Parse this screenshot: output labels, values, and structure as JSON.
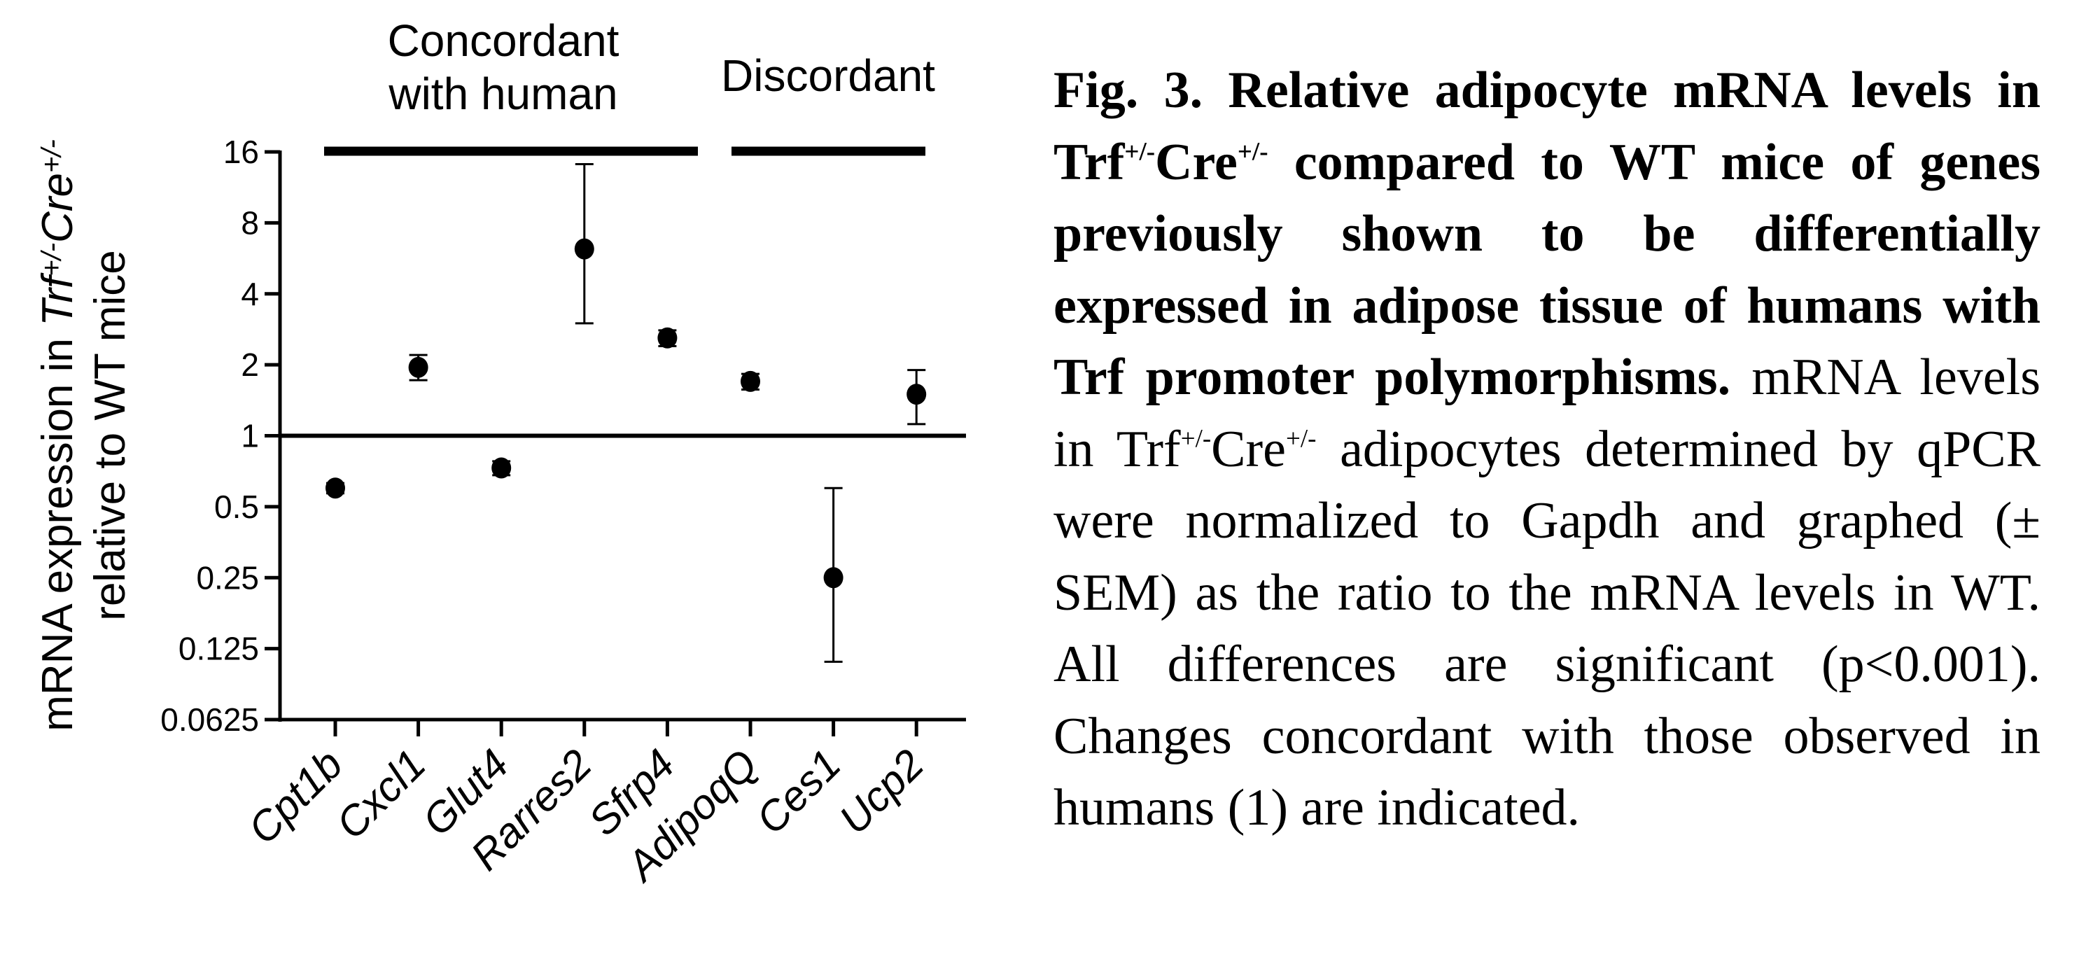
{
  "chart_data": {
    "type": "scatter",
    "y_scale": "log2",
    "ylim": [
      0.0625,
      16
    ],
    "y_ticks": [
      "16",
      "8",
      "4",
      "2",
      "1",
      "0.5",
      "0.25",
      "0.125",
      "0.0625"
    ],
    "y_tick_values": [
      16,
      8,
      4,
      2,
      1,
      0.5,
      0.25,
      0.125,
      0.0625
    ],
    "reference_line": 1,
    "ylabel": {
      "line1_prefix": "mRNA expression in ",
      "line1_gene": "Trf",
      "line1_sup1": "+/-",
      "line1_mid": "Cre",
      "line1_sup2": "+/-",
      "line2": "relative to WT mice"
    },
    "categories": [
      "Cpt1b",
      "Cxcl1",
      "Glut4",
      "Rarres2",
      "Sfrp4",
      "AdipoqQ",
      "Ces1",
      "Ucp2"
    ],
    "values": [
      0.6,
      1.95,
      0.73,
      6.2,
      2.6,
      1.7,
      0.25,
      1.5
    ],
    "error_low": [
      0.57,
      1.72,
      0.68,
      3.0,
      2.4,
      1.57,
      0.11,
      1.12
    ],
    "error_high": [
      0.63,
      2.2,
      0.78,
      14.2,
      2.8,
      1.83,
      0.6,
      1.9
    ],
    "groups": [
      {
        "label_lines": [
          "Concordant",
          "with human"
        ],
        "from": 0,
        "to": 4
      },
      {
        "label_lines": [
          "Discordant"
        ],
        "from": 5,
        "to": 7
      }
    ],
    "grid": false,
    "legend": "none"
  },
  "caption": {
    "bold_line1": "Fig. 3. Relative adipocyte mRNA levels in",
    "bold_trf": "Trf",
    "bold_cre": "Cre",
    "sup_genotype": "+/-",
    "bold_rest": " compared to WT mice of genes previously shown to be differentially expressed in adipose tissue of humans with Trf promoter polymorphisms.",
    "text_before": " mRNA levels in ",
    "text_trf": "Trf",
    "text_cre": "Cre",
    "text_after": " adipocytes determined by qPCR were normalized to Gapdh and graphed (± SEM) as the ratio to the mRNA levels in WT. All differences are significant (p<0.001). Changes concordant with those observed in humans (1) are indicated."
  }
}
